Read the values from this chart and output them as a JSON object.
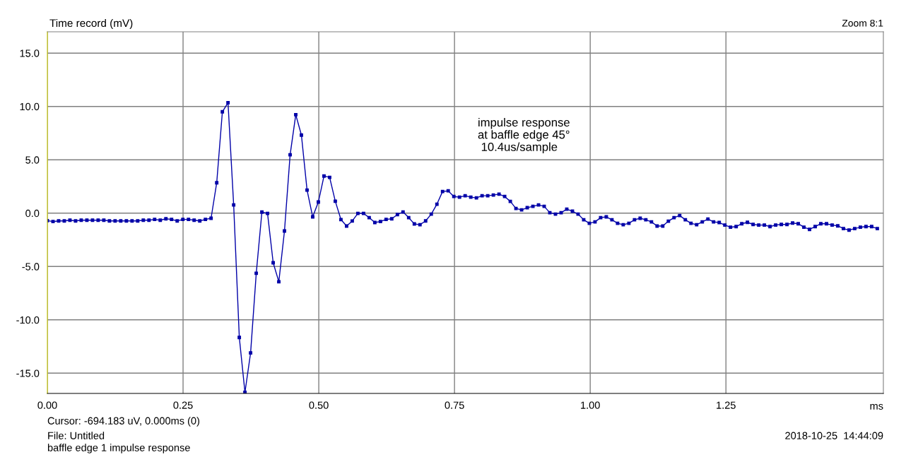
{
  "chart_data": {
    "type": "line",
    "title": "Time record (mV)",
    "subtitle": "Zoom 8:1",
    "xlabel": "ms",
    "annotations": [
      "impulse response\nat baffle edge 45°\n 10.4us/sample",
      "Cursor: -694.183 uV, 0.000ms (0)",
      "File: Untitled",
      "baffle edge 1 impulse response",
      "2018-10-25  14:44:09"
    ],
    "x": [
      0,
      0.0104,
      0.0208,
      0.0312,
      0.0416,
      0.052,
      0.0624,
      0.0728,
      0.0832,
      0.0936,
      0.104,
      0.1144,
      0.1248,
      0.1352,
      0.1456,
      0.156,
      0.1664,
      0.1768,
      0.1872,
      0.1976,
      0.208,
      0.2184,
      0.2288,
      0.2392,
      0.2496,
      0.26,
      0.2704,
      0.2808,
      0.2912,
      0.3016,
      0.312,
      0.3224,
      0.3328,
      0.3432,
      0.3536,
      0.364,
      0.3744,
      0.3848,
      0.3952,
      0.4056,
      0.416,
      0.4264,
      0.4368,
      0.4472,
      0.4576,
      0.468,
      0.4784,
      0.4888,
      0.4992,
      0.5096,
      0.52,
      0.5304,
      0.5408,
      0.5512,
      0.5616,
      0.572,
      0.5824,
      0.5928,
      0.6032,
      0.6136,
      0.624,
      0.6344,
      0.6448,
      0.6552,
      0.6656,
      0.676,
      0.6864,
      0.6968,
      0.7072,
      0.7176,
      0.728,
      0.7384,
      0.7488,
      0.7592,
      0.7696,
      0.78,
      0.7904,
      0.8008,
      0.8112,
      0.8216,
      0.832,
      0.8424,
      0.8528,
      0.8632,
      0.8736,
      0.884,
      0.8944,
      0.9048,
      0.9152,
      0.9256,
      0.936,
      0.9464,
      0.9568,
      0.9672,
      0.9776,
      0.988,
      0.9984,
      1.0088,
      1.0192,
      1.0296,
      1.04,
      1.0504,
      1.0608,
      1.0712,
      1.0816,
      1.092,
      1.1024,
      1.1128,
      1.1232,
      1.1336,
      1.144,
      1.1544,
      1.1648,
      1.1752,
      1.1856,
      1.196,
      1.2064,
      1.2168,
      1.2272,
      1.2376,
      1.248,
      1.2584,
      1.2688,
      1.2792,
      1.2896,
      1.3,
      1.3104,
      1.3208,
      1.3312,
      1.3416,
      1.352,
      1.3624,
      1.3728,
      1.3832,
      1.3936,
      1.404,
      1.4144,
      1.4248,
      1.4352,
      1.4456,
      1.456,
      1.4664,
      1.4768,
      1.4872,
      1.4976,
      1.508,
      1.5184,
      1.5288
    ],
    "series": [
      {
        "color": "#0000a8",
        "values": [
          -0.7,
          -0.79,
          -0.73,
          -0.73,
          -0.66,
          -0.73,
          -0.66,
          -0.66,
          -0.66,
          -0.66,
          -0.66,
          -0.73,
          -0.73,
          -0.73,
          -0.73,
          -0.73,
          -0.73,
          -0.66,
          -0.66,
          -0.59,
          -0.66,
          -0.53,
          -0.59,
          -0.73,
          -0.59,
          -0.59,
          -0.66,
          -0.73,
          -0.59,
          -0.48,
          2.85,
          9.5,
          10.35,
          0.77,
          -11.65,
          -16.8,
          -13.1,
          -5.64,
          0.1,
          -0.02,
          -4.65,
          -6.43,
          -1.67,
          5.47,
          9.23,
          7.32,
          2.16,
          -0.35,
          1.04,
          3.48,
          3.35,
          1.12,
          -0.6,
          -1.21,
          -0.74,
          -0.02,
          -0.02,
          -0.42,
          -0.88,
          -0.79,
          -0.59,
          -0.53,
          -0.13,
          0.11,
          -0.42,
          -1.01,
          -1.08,
          -0.73,
          -0.09,
          0.84,
          2.03,
          2.09,
          1.56,
          1.5,
          1.63,
          1.5,
          1.43,
          1.63,
          1.63,
          1.7,
          1.78,
          1.56,
          1.1,
          0.44,
          0.31,
          0.51,
          0.64,
          0.77,
          0.64,
          0.04,
          -0.09,
          0.04,
          0.37,
          0.18,
          -0.09,
          -0.62,
          -0.95,
          -0.82,
          -0.42,
          -0.35,
          -0.62,
          -0.95,
          -1.08,
          -0.95,
          -0.62,
          -0.48,
          -0.62,
          -0.82,
          -1.21,
          -1.21,
          -0.75,
          -0.42,
          -0.22,
          -0.62,
          -0.95,
          -1.08,
          -0.82,
          -0.55,
          -0.82,
          -0.88,
          -1.12,
          -1.32,
          -1.26,
          -0.99,
          -0.86,
          -1.06,
          -1.12,
          -1.12,
          -1.26,
          -1.12,
          -1.06,
          -1.06,
          -0.93,
          -0.99,
          -1.32,
          -1.52,
          -1.26,
          -0.99,
          -0.99,
          -1.12,
          -1.19,
          -1.45,
          -1.59,
          -1.45,
          -1.32,
          -1.26,
          -1.26,
          -1.45
        ]
      }
    ],
    "xlim": [
      0,
      1.54
    ],
    "ylim": [
      -16.9,
      17.0
    ],
    "xticks": [
      {
        "value": 0,
        "label": "0.00"
      },
      {
        "value": 0.25,
        "label": "0.25"
      },
      {
        "value": 0.5,
        "label": "0.50"
      },
      {
        "value": 0.75,
        "label": "0.75"
      },
      {
        "value": 1.0,
        "label": "1.00"
      },
      {
        "value": 1.25,
        "label": "1.25"
      }
    ],
    "yticks": [
      {
        "value": -15,
        "label": "-15.0"
      },
      {
        "value": -10,
        "label": "-10.0"
      },
      {
        "value": -5,
        "label": "-5.0"
      },
      {
        "value": 0,
        "label": "0.0"
      },
      {
        "value": 5,
        "label": "5.0"
      },
      {
        "value": 10,
        "label": "10.0"
      },
      {
        "value": 15,
        "label": "15.0"
      }
    ],
    "grid": true,
    "marker": "square",
    "line_style": "solid"
  }
}
